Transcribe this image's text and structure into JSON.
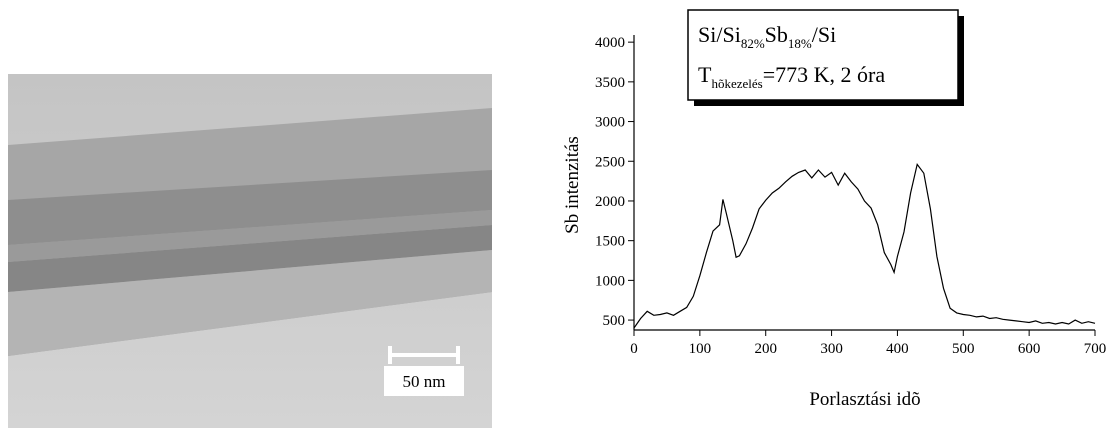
{
  "micrograph": {
    "scale_bar_label": "50 nm"
  },
  "chart_data": {
    "type": "line",
    "annotation": {
      "line1": [
        "Si/Si",
        "82%",
        "Sb",
        "18%",
        "/Si"
      ],
      "line2": [
        "T",
        "hõkezelés",
        "=773 K, 2 óra"
      ]
    },
    "x_label": "Porlasztási idõ",
    "y_label": "Sb intenzitás",
    "xlim": [
      0,
      700
    ],
    "xticks": [
      0,
      100,
      200,
      300,
      400,
      500,
      600,
      700
    ],
    "ylim": [
      375,
      4090
    ],
    "yticks": [
      500,
      1000,
      1500,
      2000,
      2500,
      3000,
      3500,
      4000
    ],
    "color": "#000000",
    "x": [
      0,
      10,
      20,
      30,
      40,
      50,
      60,
      70,
      80,
      90,
      100,
      110,
      120,
      130,
      135,
      140,
      150,
      155,
      160,
      170,
      180,
      190,
      200,
      210,
      220,
      230,
      240,
      250,
      260,
      270,
      280,
      290,
      300,
      310,
      320,
      330,
      340,
      350,
      360,
      370,
      380,
      390,
      395,
      400,
      410,
      420,
      430,
      440,
      450,
      460,
      470,
      480,
      490,
      500,
      510,
      520,
      530,
      540,
      550,
      560,
      570,
      580,
      590,
      600,
      610,
      620,
      630,
      640,
      650,
      660,
      670,
      680,
      690,
      700
    ],
    "values": [
      400,
      520,
      610,
      560,
      570,
      590,
      560,
      610,
      660,
      800,
      1060,
      1350,
      1620,
      1700,
      2020,
      1850,
      1500,
      1290,
      1310,
      1460,
      1660,
      1900,
      2010,
      2100,
      2160,
      2240,
      2310,
      2360,
      2390,
      2290,
      2390,
      2300,
      2360,
      2200,
      2350,
      2240,
      2150,
      2000,
      1910,
      1700,
      1350,
      1200,
      1100,
      1300,
      1610,
      2100,
      2460,
      2350,
      1900,
      1300,
      900,
      650,
      590,
      570,
      560,
      540,
      550,
      520,
      530,
      510,
      500,
      490,
      480,
      470,
      490,
      460,
      470,
      450,
      470,
      450,
      500,
      460,
      480,
      460
    ]
  }
}
